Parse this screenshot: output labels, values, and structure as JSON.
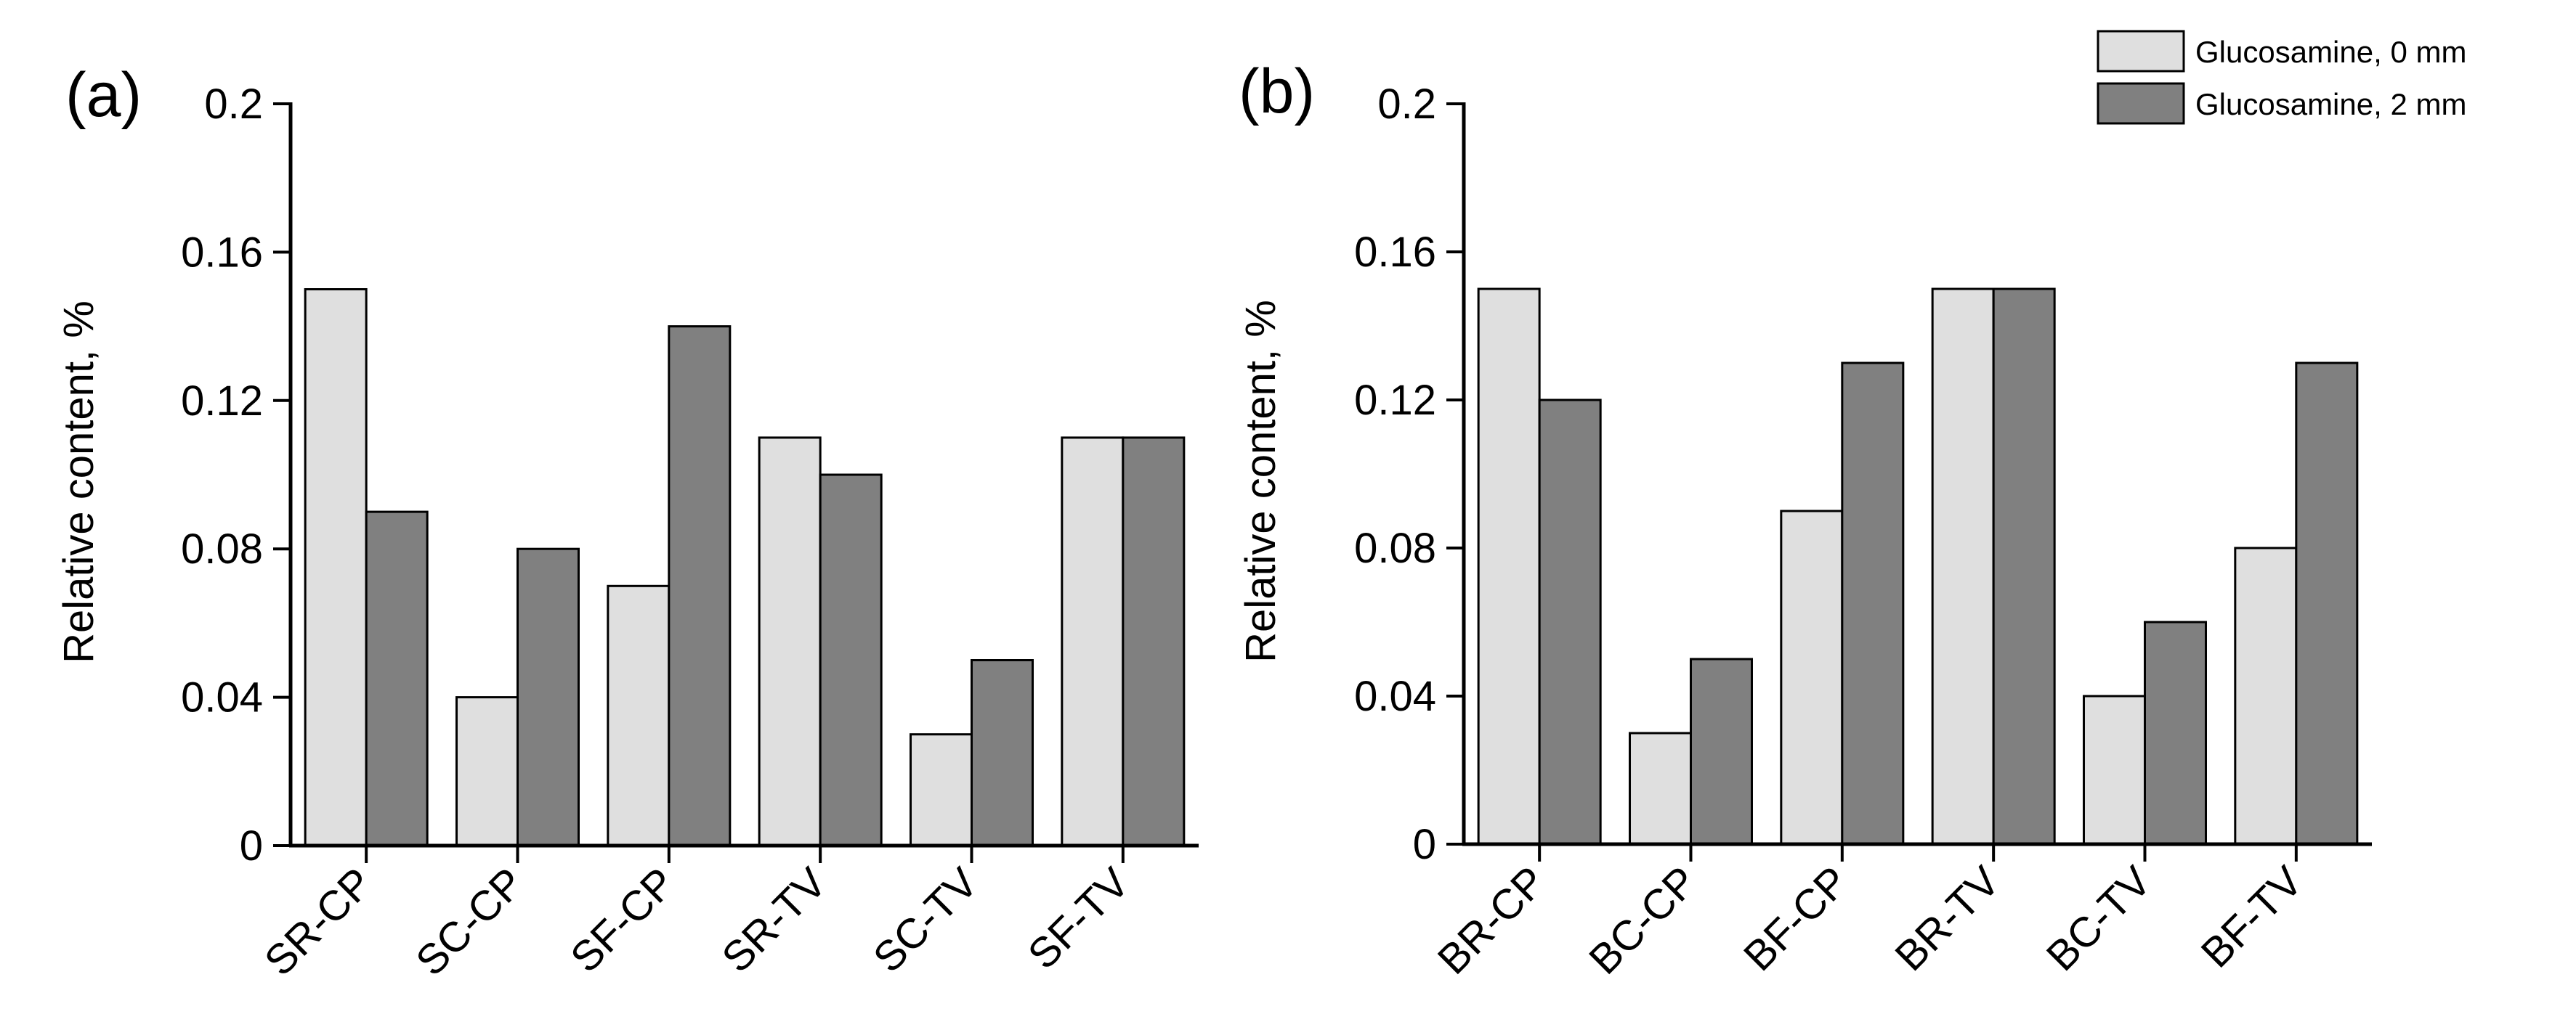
{
  "legend": {
    "entries": [
      {
        "label": "Glucosamine, 0 mm",
        "color": "#dfdfdf"
      },
      {
        "label": "Glucosamine, 2 mm",
        "color": "#808080"
      }
    ]
  },
  "chart_data": [
    {
      "type": "bar",
      "panel_label": "(a)",
      "title": "",
      "xlabel": "",
      "ylabel": "Relative content, %",
      "ylim": [
        0,
        0.2
      ],
      "yticks": [
        "0",
        "0.04",
        "0.08",
        "0.12",
        "0.16",
        "0.2"
      ],
      "ytick_values": [
        0,
        0.04,
        0.08,
        0.12,
        0.16,
        0.2
      ],
      "categories": [
        "SR-CP",
        "SC-CP",
        "SF-CP",
        "SR-TV",
        "SC-TV",
        "SF-TV"
      ],
      "series": [
        {
          "name": "Glucosamine, 0 mm",
          "values": [
            0.15,
            0.04,
            0.07,
            0.11,
            0.03,
            0.11
          ]
        },
        {
          "name": "Glucosamine, 2 mm",
          "values": [
            0.09,
            0.08,
            0.14,
            0.1,
            0.05,
            0.11
          ]
        }
      ]
    },
    {
      "type": "bar",
      "panel_label": "(b)",
      "title": "",
      "xlabel": "",
      "ylabel": "Relative content, %",
      "ylim": [
        0,
        0.2
      ],
      "yticks": [
        "0",
        "0.04",
        "0.08",
        "0.12",
        "0.16",
        "0.2"
      ],
      "ytick_values": [
        0,
        0.04,
        0.08,
        0.12,
        0.16,
        0.2
      ],
      "categories": [
        "BR-CP",
        "BC-CP",
        "BF-CP",
        "BR-TV",
        "BC-TV",
        "BF-TV"
      ],
      "series": [
        {
          "name": "Glucosamine, 0 mm",
          "values": [
            0.15,
            0.03,
            0.09,
            0.15,
            0.04,
            0.08
          ]
        },
        {
          "name": "Glucosamine, 2 mm",
          "values": [
            0.12,
            0.05,
            0.13,
            0.15,
            0.06,
            0.13
          ]
        }
      ]
    }
  ]
}
